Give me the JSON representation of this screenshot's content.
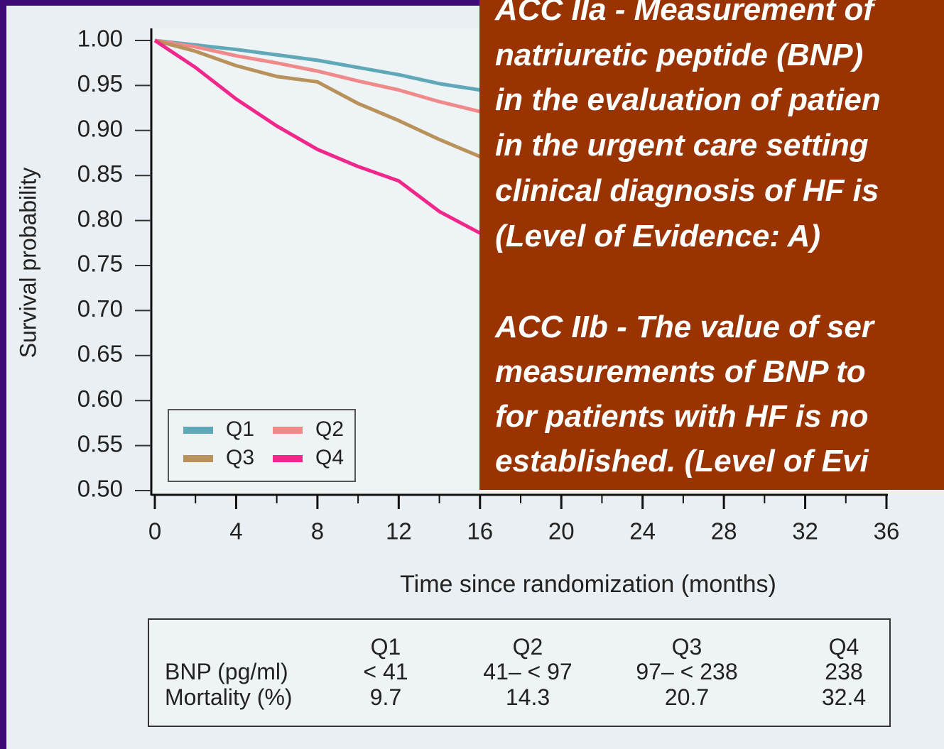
{
  "chart_data": {
    "type": "line",
    "y_label": "Survival probability",
    "x_label": "Time since randomization (months)",
    "x": [
      0,
      2,
      4,
      6,
      8,
      10,
      12,
      14,
      16
    ],
    "series": [
      {
        "name": "Q1",
        "color": "#5fa8b8",
        "values": [
          1.0,
          0.995,
          0.99,
          0.984,
          0.978,
          0.97,
          0.962,
          0.952,
          0.945
        ]
      },
      {
        "name": "Q2",
        "color": "#f08a8a",
        "values": [
          1.0,
          0.993,
          0.983,
          0.975,
          0.966,
          0.955,
          0.945,
          0.932,
          0.921
        ]
      },
      {
        "name": "Q3",
        "color": "#b8925a",
        "values": [
          1.0,
          0.988,
          0.972,
          0.96,
          0.954,
          0.93,
          0.911,
          0.89,
          0.871
        ]
      },
      {
        "name": "Q4",
        "color": "#f0288c",
        "values": [
          1.0,
          0.97,
          0.935,
          0.905,
          0.879,
          0.86,
          0.844,
          0.81,
          0.786
        ]
      }
    ],
    "xlim": [
      0,
      36
    ],
    "xticks": [
      0,
      4,
      8,
      12,
      16,
      20,
      24,
      28,
      32,
      36
    ],
    "ylim": [
      0.5,
      1.0
    ],
    "yticks": [
      {
        "value": 0.5,
        "label": "0.50"
      },
      {
        "value": 0.55,
        "label": "0.55"
      },
      {
        "value": 0.6,
        "label": "0.60"
      },
      {
        "value": 0.65,
        "label": "0.65"
      },
      {
        "value": 0.7,
        "label": "0.70"
      },
      {
        "value": 0.75,
        "label": "0.75"
      },
      {
        "value": 0.8,
        "label": "0.80"
      },
      {
        "value": 0.85,
        "label": "0.85"
      },
      {
        "value": 0.9,
        "label": "0.90"
      },
      {
        "value": 0.95,
        "label": "0.95"
      },
      {
        "value": 1.0,
        "label": "1.00"
      }
    ],
    "legend": "lower left"
  },
  "table": {
    "header": [
      "Q1",
      "Q2",
      "Q3",
      "Q4"
    ],
    "rows": [
      [
        "BNP (pg/ml)",
        "< 41",
        "41– < 97",
        "97– < 238",
        "238"
      ],
      [
        "Mortality (%)",
        "9.7",
        "14.3",
        "20.7",
        "32.4"
      ]
    ]
  },
  "note": {
    "lines": [
      "ACC IIa - Measurement of",
      "natriuretic peptide (BNP)",
      "in the evaluation of patien",
      "in the urgent care setting",
      "clinical diagnosis of HF is",
      "(Level of Evidence: A)",
      "ACC IIb - The value of ser",
      "measurements of BNP to",
      "for patients with HF is no",
      "established. (Level of Evi"
    ]
  }
}
